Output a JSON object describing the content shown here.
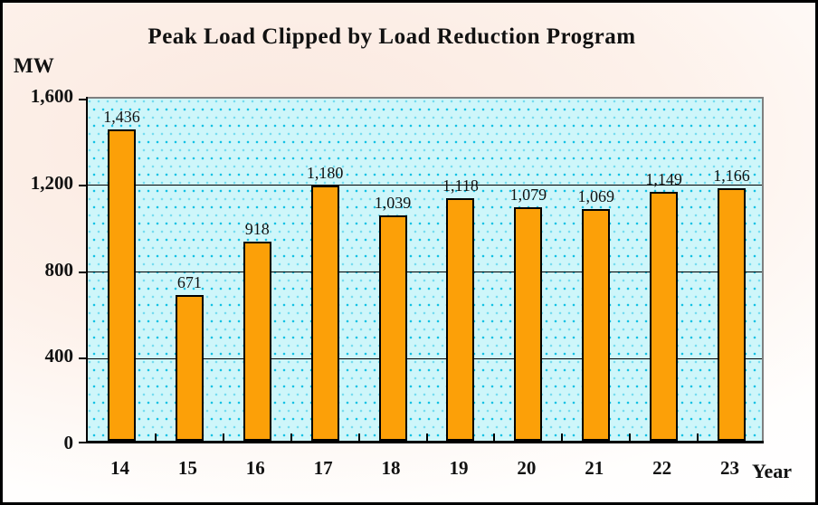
{
  "title": "Peak Load Clipped by Load Reduction Program",
  "y_axis_unit": "MW",
  "x_axis_unit": "Year",
  "chart_data": {
    "type": "bar",
    "title": "Peak Load Clipped by Load Reduction Program",
    "xlabel": "Year",
    "ylabel": "MW",
    "categories": [
      "14",
      "15",
      "16",
      "17",
      "18",
      "19",
      "20",
      "21",
      "22",
      "23"
    ],
    "values": [
      1436,
      671,
      918,
      1180,
      1039,
      1118,
      1079,
      1069,
      1149,
      1166
    ],
    "value_labels": [
      "1,436",
      "671",
      "918",
      "1,180",
      "1,039",
      "1,118",
      "1,079",
      "1,069",
      "1,149",
      "1,166"
    ],
    "ylim": [
      0,
      1600
    ],
    "yticks": [
      {
        "value": 1600,
        "label": "1,600"
      },
      {
        "value": 1200,
        "label": "1,200"
      },
      {
        "value": 800,
        "label": "800"
      },
      {
        "value": 400,
        "label": "400"
      },
      {
        "value": 0,
        "label": "0"
      }
    ],
    "grid": true,
    "legend": "none",
    "colors": {
      "bar_fill": "#fca008",
      "bar_border": "#000000",
      "plot_background": "#cef6fa",
      "plot_dot": "#14c2e4",
      "plot_border": "#7f7f7f",
      "axis_line": "#000000",
      "page_tint": "#fae8df"
    }
  }
}
